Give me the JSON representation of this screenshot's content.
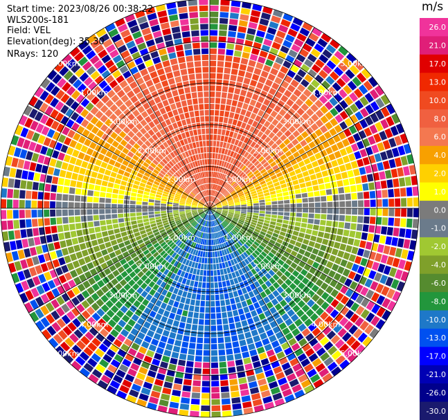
{
  "header": {
    "start_time": "Start time: 2023/08/26 00:38:22",
    "site": "WLS200s-181",
    "field": "Field: VEL",
    "elevation": "Elevation(deg): 35.30",
    "nrays": "NRays: 120"
  },
  "range_rings": [
    {
      "range_km": 1.0,
      "label": "1.00km"
    },
    {
      "range_km": 2.0,
      "label": "2.00km"
    },
    {
      "range_km": 3.0,
      "label": "3.00km"
    },
    {
      "range_km": 4.0,
      "label": "4.00km"
    },
    {
      "range_km": 5.0,
      "label": "5.00km"
    }
  ],
  "max_range_km": 5.0,
  "colorbar": {
    "unit": "m/s",
    "ticks": [
      "26.0",
      "21.0",
      "17.0",
      "13.0",
      "10.0",
      "8.0",
      "6.0",
      "4.0",
      "2.0",
      "1.0",
      "0.0",
      "-1.0",
      "-2.0",
      "-4.0",
      "-6.0",
      "-8.0",
      "-10.0",
      "-13.0",
      "-17.0",
      "-21.0",
      "-26.0",
      "-30.0"
    ],
    "bins": [
      {
        "max": 30.0,
        "min": 26.0,
        "color": "#f0339b"
      },
      {
        "max": 26.0,
        "min": 21.0,
        "color": "#e01e78"
      },
      {
        "max": 21.0,
        "min": 17.0,
        "color": "#e00000"
      },
      {
        "max": 17.0,
        "min": 13.0,
        "color": "#f02800"
      },
      {
        "max": 13.0,
        "min": 10.0,
        "color": "#f04a20"
      },
      {
        "max": 10.0,
        "min": 8.0,
        "color": "#f06040"
      },
      {
        "max": 8.0,
        "min": 6.0,
        "color": "#f47850"
      },
      {
        "max": 6.0,
        "min": 4.0,
        "color": "#f8a000"
      },
      {
        "max": 4.0,
        "min": 2.0,
        "color": "#ffd000"
      },
      {
        "max": 2.0,
        "min": 1.0,
        "color": "#ffff00"
      },
      {
        "max": 1.0,
        "min": 0.0,
        "color": "#7b7b7b"
      },
      {
        "max": 0.0,
        "min": -1.0,
        "color": "#6b7b8b"
      },
      {
        "max": -1.0,
        "min": -2.0,
        "color": "#a0c832"
      },
      {
        "max": -2.0,
        "min": -4.0,
        "color": "#7fa02a"
      },
      {
        "max": -4.0,
        "min": -6.0,
        "color": "#558b2f"
      },
      {
        "max": -6.0,
        "min": -8.0,
        "color": "#22963c"
      },
      {
        "max": -8.0,
        "min": -10.0,
        "color": "#1e78c8"
      },
      {
        "max": -10.0,
        "min": -13.0,
        "color": "#0050f0"
      },
      {
        "max": -13.0,
        "min": -17.0,
        "color": "#0000ff"
      },
      {
        "max": -17.0,
        "min": -21.0,
        "color": "#0000b4"
      },
      {
        "max": -21.0,
        "min": -26.0,
        "color": "#00008c"
      },
      {
        "max": -26.0,
        "min": -30.0,
        "color": "#1a1a6e"
      }
    ]
  },
  "field_pattern": {
    "north_sector": "receding",
    "south_sector": "approaching",
    "east_west_axis": "near-zero"
  }
}
